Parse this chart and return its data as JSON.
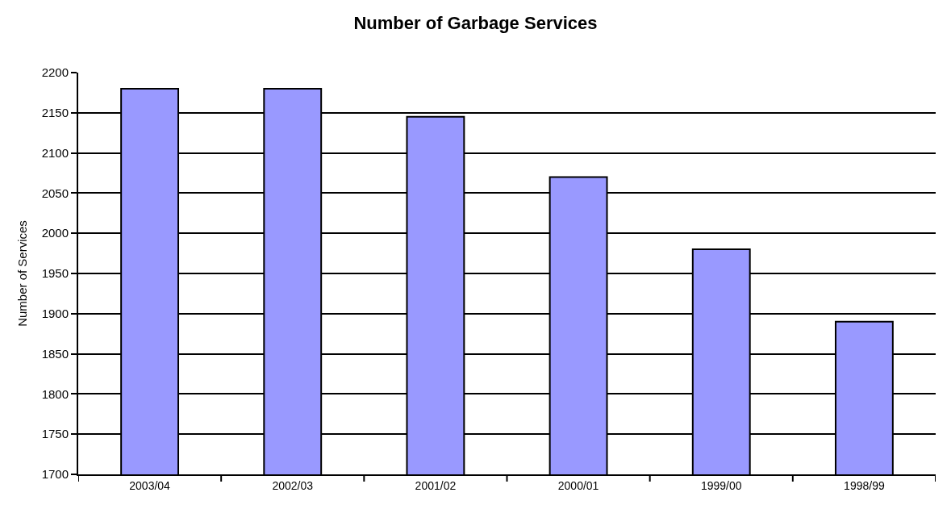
{
  "chart_data": {
    "type": "bar",
    "title": "Number of Garbage Services",
    "ylabel": "Number of Services",
    "categories": [
      "2003/04",
      "2002/03",
      "2001/02",
      "2000/01",
      "1999/00",
      "1998/99"
    ],
    "values": [
      2180,
      2180,
      2145,
      2070,
      1980,
      1890
    ],
    "color": "#9999ff",
    "ylim": [
      1700,
      2200
    ],
    "yticks": [
      1700,
      1750,
      1800,
      1850,
      1900,
      1950,
      2000,
      2050,
      2100,
      2150,
      2200
    ],
    "grid": "y"
  }
}
